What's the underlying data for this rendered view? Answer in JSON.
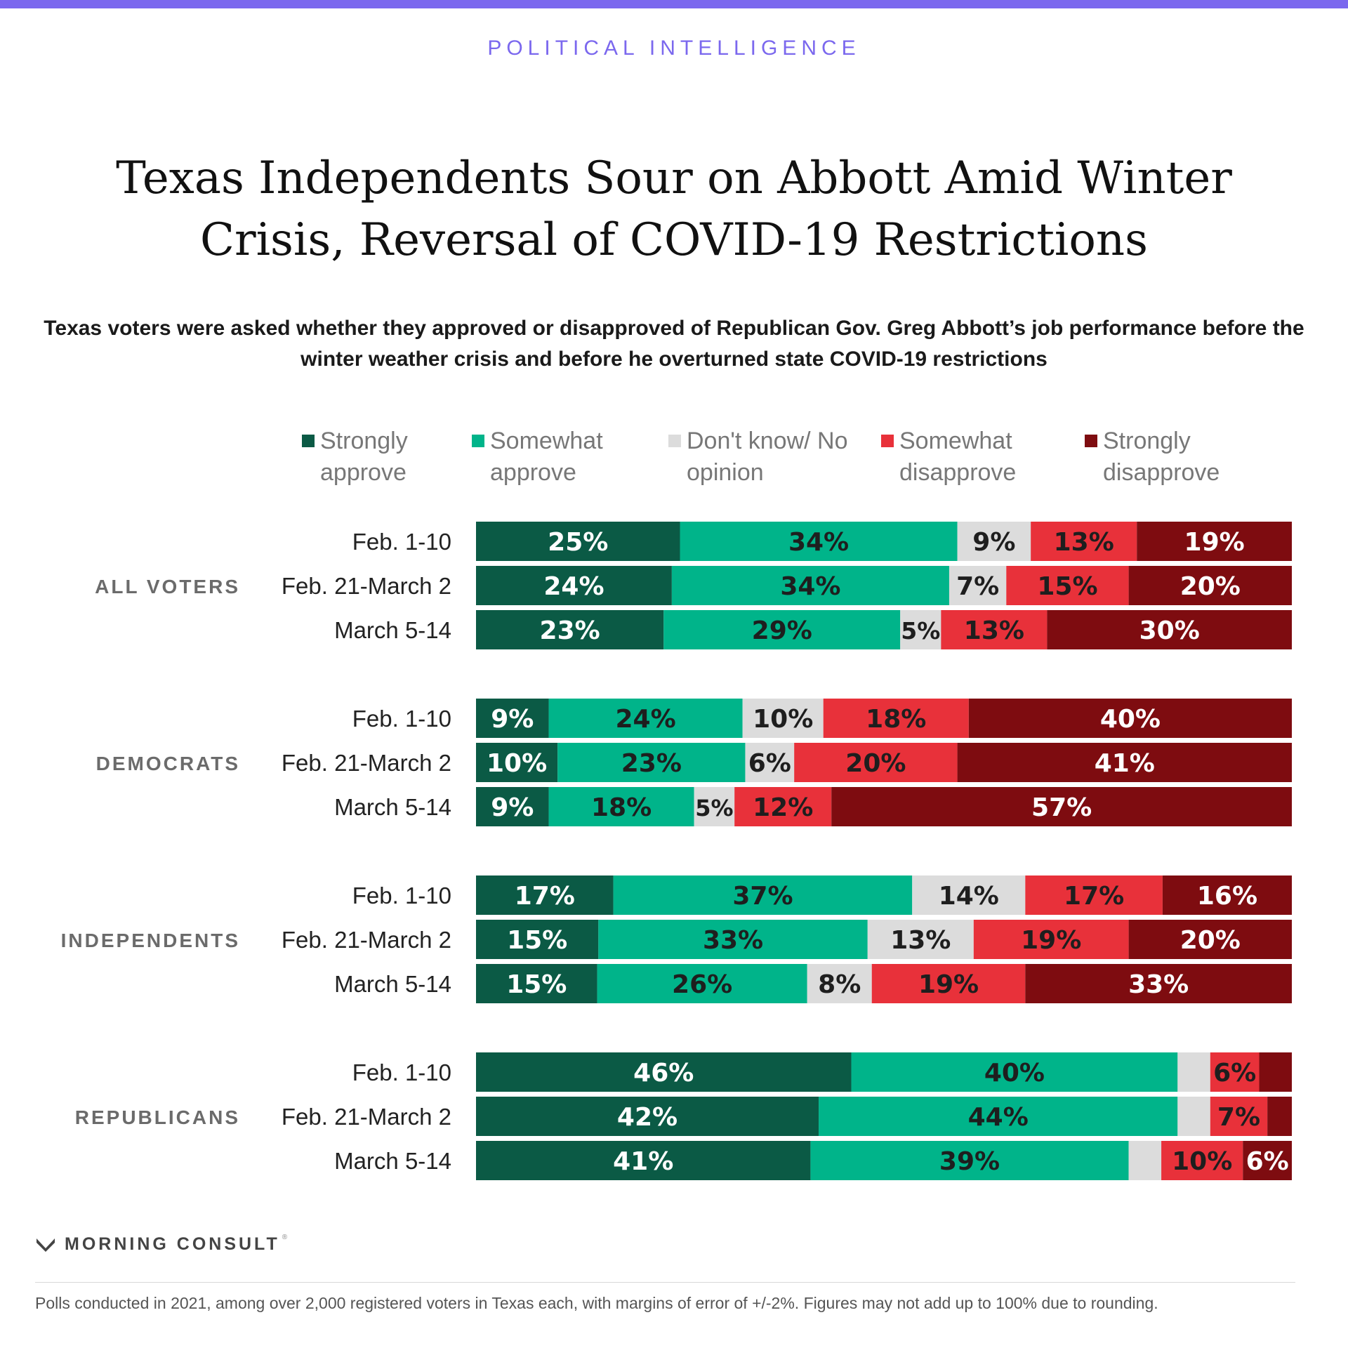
{
  "header": {
    "brand": "POLITICAL INTELLIGENCE",
    "title": "Texas Independents Sour on Abbott Amid Winter Crisis, Reversal of COVID-19 Restrictions",
    "subtitle": "Texas voters were asked whether they approved or disapproved of Republican Gov. Greg Abbott’s job performance before the winter weather crisis and before he overturned state COVID-19 restrictions"
  },
  "colors": {
    "accent": "#7B68EE",
    "strongly_approve": "#0B5A45",
    "somewhat_approve": "#00B48A",
    "dont_know": "#DCDCDC",
    "somewhat_disapprove": "#E8313A",
    "strongly_disapprove": "#7E0C10"
  },
  "chart_data": {
    "type": "bar",
    "orientation": "horizontal",
    "stacked": true,
    "unit": "%",
    "legend": [
      {
        "key": "strongly_approve",
        "label": "Strongly approve"
      },
      {
        "key": "somewhat_approve",
        "label": "Somewhat approve"
      },
      {
        "key": "dont_know",
        "label": "Don't know/ No opinion"
      },
      {
        "key": "somewhat_disapprove",
        "label": "Somewhat disapprove"
      },
      {
        "key": "strongly_disapprove",
        "label": "Strongly disapprove"
      }
    ],
    "legend_position": "top",
    "groups": [
      {
        "name": "ALL VOTERS",
        "rows": [
          {
            "period": "Feb. 1-10",
            "values": [
              25,
              34,
              9,
              13,
              19
            ],
            "labels": [
              "25%",
              "34%",
              "9%",
              "13%",
              "19%"
            ]
          },
          {
            "period": "Feb. 21-March 2",
            "values": [
              24,
              34,
              7,
              15,
              20
            ],
            "labels": [
              "24%",
              "34%",
              "7%",
              "15%",
              "20%"
            ]
          },
          {
            "period": "March 5-14",
            "values": [
              23,
              29,
              5,
              13,
              30
            ],
            "labels": [
              "23%",
              "29%",
              "5%",
              "13%",
              "30%"
            ]
          }
        ]
      },
      {
        "name": "DEMOCRATS",
        "rows": [
          {
            "period": "Feb. 1-10",
            "values": [
              9,
              24,
              10,
              18,
              40
            ],
            "labels": [
              "9%",
              "24%",
              "10%",
              "18%",
              "40%"
            ]
          },
          {
            "period": "Feb. 21-March 2",
            "values": [
              10,
              23,
              6,
              20,
              41
            ],
            "labels": [
              "10%",
              "23%",
              "6%",
              "20%",
              "41%"
            ]
          },
          {
            "period": "March 5-14",
            "values": [
              9,
              18,
              5,
              12,
              57
            ],
            "labels": [
              "9%",
              "18%",
              "5%",
              "12%",
              "57%"
            ]
          }
        ]
      },
      {
        "name": "INDEPENDENTS",
        "rows": [
          {
            "period": "Feb. 1-10",
            "values": [
              17,
              37,
              14,
              17,
              16
            ],
            "labels": [
              "17%",
              "37%",
              "14%",
              "17%",
              "16%"
            ]
          },
          {
            "period": "Feb. 21-March 2",
            "values": [
              15,
              33,
              13,
              19,
              20
            ],
            "labels": [
              "15%",
              "33%",
              "13%",
              "19%",
              "20%"
            ]
          },
          {
            "period": "March 5-14",
            "values": [
              15,
              26,
              8,
              19,
              33
            ],
            "labels": [
              "15%",
              "26%",
              "8%",
              "19%",
              "33%"
            ]
          }
        ]
      },
      {
        "name": "REPUBLICANS",
        "rows": [
          {
            "period": "Feb. 1-10",
            "values": [
              46,
              40,
              4,
              6,
              4
            ],
            "labels": [
              "46%",
              "40%",
              "",
              "6%",
              ""
            ]
          },
          {
            "period": "Feb. 21-March 2",
            "values": [
              42,
              44,
              4,
              7,
              3
            ],
            "labels": [
              "42%",
              "44%",
              "",
              "7%",
              ""
            ]
          },
          {
            "period": "March 5-14",
            "values": [
              41,
              39,
              4,
              10,
              6
            ],
            "labels": [
              "41%",
              "39%",
              "",
              "10%",
              "6%"
            ]
          }
        ]
      }
    ]
  },
  "footer": {
    "logo": "MORNING CONSULT",
    "logo_mark": "®",
    "footnote": "Polls conducted in 2021, among over 2,000 registered voters in Texas each, with margins of error of +/-2%.  Figures may not add up to 100% due to rounding."
  }
}
